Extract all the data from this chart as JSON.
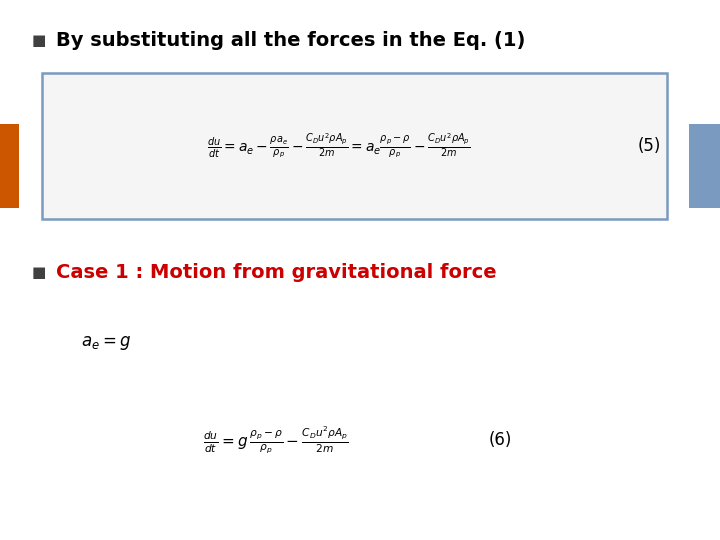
{
  "bg_color": "#ffffff",
  "bullet_color": "#404040",
  "title1_color": "#000000",
  "title2_color": "#cc0000",
  "box_edge_color": "#7a9abf",
  "box_face_color": "#f5f5f5",
  "orange_rect_color": "#cc5500",
  "blue_rect_color": "#7a9abf",
  "eq5_label": "(5)",
  "eq6_label": "(6)",
  "title1": "By substituting all the forces in the Eq. (1)",
  "title2": "Case 1 : Motion from gravitational force",
  "bullet_char": "■"
}
